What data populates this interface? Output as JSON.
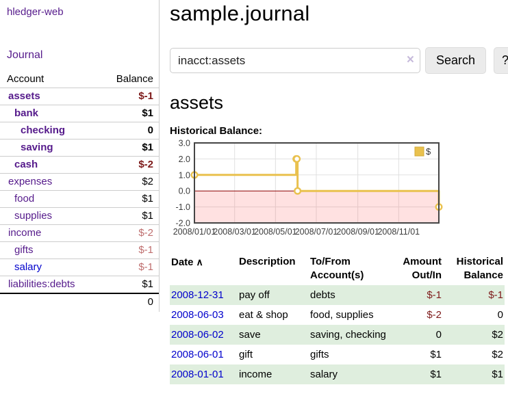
{
  "app": {
    "brand": "hledger-web"
  },
  "colors": {
    "link_purple": "#551a8b",
    "link_blue": "#0000cc",
    "negative_strong": "#7d1a1a",
    "negative_soft": "#bf6e6e",
    "row_stripe_green": "#dfeede",
    "series_gold": "#e9c14e"
  },
  "sidebar": {
    "nav_label": "Journal",
    "table": {
      "account_header": "Account",
      "balance_header": "Balance",
      "rows": [
        {
          "name": "assets",
          "indent": 1,
          "bold": true,
          "link": "purple",
          "balance": "$-1",
          "balance_style": "neg-strong"
        },
        {
          "name": "bank",
          "indent": 2,
          "bold": true,
          "link": "purple",
          "balance": "$1",
          "balance_style": "normal"
        },
        {
          "name": "checking",
          "indent": 3,
          "bold": true,
          "link": "purple",
          "balance": "0",
          "balance_style": "normal"
        },
        {
          "name": "saving",
          "indent": 3,
          "bold": true,
          "link": "purple",
          "balance": "$1",
          "balance_style": "normal"
        },
        {
          "name": "cash",
          "indent": 2,
          "bold": true,
          "link": "purple",
          "balance": "$-2",
          "balance_style": "neg-strong"
        },
        {
          "name": "expenses",
          "indent": 1,
          "bold": false,
          "link": "purple",
          "balance": "$2",
          "balance_style": "normal"
        },
        {
          "name": "food",
          "indent": 2,
          "bold": false,
          "link": "purple",
          "balance": "$1",
          "balance_style": "normal"
        },
        {
          "name": "supplies",
          "indent": 2,
          "bold": false,
          "link": "purple",
          "balance": "$1",
          "balance_style": "normal"
        },
        {
          "name": "income",
          "indent": 1,
          "bold": false,
          "link": "purple",
          "balance": "$-2",
          "balance_style": "neg-soft"
        },
        {
          "name": "gifts",
          "indent": 2,
          "bold": false,
          "link": "purple",
          "balance": "$-1",
          "balance_style": "neg-soft"
        },
        {
          "name": "salary",
          "indent": 2,
          "bold": false,
          "link": "blue",
          "balance": "$-1",
          "balance_style": "neg-soft"
        },
        {
          "name": "liabilities:debts",
          "indent": 1,
          "bold": false,
          "link": "purple",
          "balance": "$1",
          "balance_style": "normal"
        }
      ],
      "total": "0"
    }
  },
  "main": {
    "title": "sample.journal",
    "search": {
      "value": "inacct:assets",
      "clear_icon": "×",
      "button": "Search",
      "help_button": "?"
    },
    "account_heading": "assets"
  },
  "chart_data": {
    "type": "line",
    "title": "Historical Balance:",
    "legend": "$",
    "legend_position": "top-right",
    "grid": true,
    "ylim": [
      -2,
      3
    ],
    "xlim_days": [
      0,
      365
    ],
    "y_ticks": [
      "3.0",
      "2.0",
      "1.0",
      "0.0",
      "-1.0",
      "-2.0"
    ],
    "x_ticks": [
      {
        "day": 0,
        "label": "2008/01/01"
      },
      {
        "day": 60,
        "label": "2008/03/01"
      },
      {
        "day": 121,
        "label": "2008/05/01"
      },
      {
        "day": 182,
        "label": "2008/07/01"
      },
      {
        "day": 244,
        "label": "2008/09/01"
      },
      {
        "day": 305,
        "label": "2008/11/01"
      }
    ],
    "series": [
      {
        "name": "$",
        "color": "#e9c14e",
        "step": true,
        "dates": [
          "2008-01-01",
          "2008-06-01",
          "2008-06-02",
          "2008-06-03",
          "2008-12-31"
        ],
        "x_days": [
          0,
          152,
          153,
          154,
          365
        ],
        "values": [
          1,
          2,
          2,
          0,
          -1
        ]
      }
    ],
    "negative_region_color": "rgba(255,80,80,0.17)",
    "zero_line_color": "#8b0000",
    "grid_color": "#e0e0e0",
    "plot_border_color": "#454545"
  },
  "transactions": {
    "headers": {
      "date": "Date",
      "sort_icon": "∧",
      "description": "Description",
      "tofrom": [
        "To/From",
        "Account(s)"
      ],
      "amount": [
        "Amount",
        "Out/In"
      ],
      "historical": [
        "Historical",
        "Balance"
      ]
    },
    "rows": [
      {
        "date": "2008-12-31",
        "description": "pay off",
        "accounts": "debts",
        "amount": "$-1",
        "amount_neg": true,
        "balance": "$-1",
        "balance_neg": true
      },
      {
        "date": "2008-06-03",
        "description": "eat & shop",
        "accounts": "food, supplies",
        "amount": "$-2",
        "amount_neg": true,
        "balance": "0",
        "balance_neg": false
      },
      {
        "date": "2008-06-02",
        "description": "save",
        "accounts": "saving, checking",
        "amount": "0",
        "amount_neg": false,
        "balance": "$2",
        "balance_neg": false
      },
      {
        "date": "2008-06-01",
        "description": "gift",
        "accounts": "gifts",
        "amount": "$1",
        "amount_neg": false,
        "balance": "$2",
        "balance_neg": false
      },
      {
        "date": "2008-01-01",
        "description": "income",
        "accounts": "salary",
        "amount": "$1",
        "amount_neg": false,
        "balance": "$1",
        "balance_neg": false
      }
    ]
  }
}
